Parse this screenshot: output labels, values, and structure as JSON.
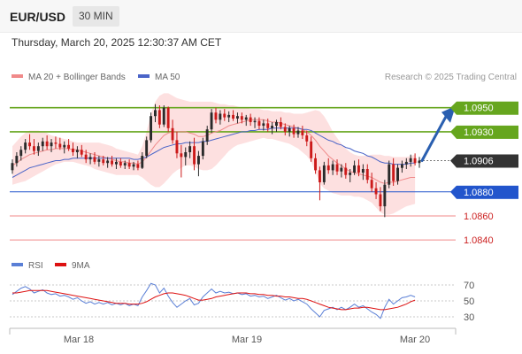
{
  "header": {
    "symbol": "EUR/USD",
    "timeframe": "30 MIN",
    "timestamp": "Thursday, March 20, 2025 12:30:37 AM CET"
  },
  "legend": {
    "ma20_label": "MA 20 + Bollinger Bands",
    "ma50_label": "MA 50",
    "credit": "Research © 2025 Trading Central"
  },
  "colors": {
    "bullish": "#2a2a2a",
    "bearish": "#cc1a1a",
    "ma20": "#f08a8a",
    "ma50": "#4a64c8",
    "bollinger_fill": "#fde0e0",
    "resistance": "#66a61e",
    "support": "#2255cc",
    "support_minor": "#f08a8a",
    "current_price": "#333333",
    "forecast_arrow": "#2a5fb0",
    "rsi": "#5a7fd6",
    "rsi_ma": "#dd1111"
  },
  "chart_data": [
    {
      "type": "candlestick",
      "title": "EUR/USD 30 MIN",
      "x_labels": [
        "Mar 18",
        "Mar 19",
        "Mar 20"
      ],
      "ylim": [
        1.0832,
        1.0966
      ],
      "candles": [
        [
          1.0898,
          1.0907,
          1.0895,
          1.0904
        ],
        [
          1.0904,
          1.0913,
          1.0901,
          1.091
        ],
        [
          1.091,
          1.0918,
          1.0906,
          1.0915
        ],
        [
          1.0915,
          1.0924,
          1.0912,
          1.0921
        ],
        [
          1.0921,
          1.0928,
          1.0915,
          1.0918
        ],
        [
          1.0918,
          1.0924,
          1.0911,
          1.0914
        ],
        [
          1.0914,
          1.0921,
          1.091,
          1.0918
        ],
        [
          1.0918,
          1.0925,
          1.0914,
          1.0922
        ],
        [
          1.0922,
          1.0927,
          1.0915,
          1.0918
        ],
        [
          1.0918,
          1.0924,
          1.0913,
          1.0921
        ],
        [
          1.0921,
          1.0926,
          1.0916,
          1.092
        ],
        [
          1.092,
          1.0925,
          1.0915,
          1.0917
        ],
        [
          1.0917,
          1.0922,
          1.0912,
          1.0919
        ],
        [
          1.0919,
          1.0924,
          1.0914,
          1.0916
        ],
        [
          1.0916,
          1.0921,
          1.091,
          1.0913
        ],
        [
          1.0913,
          1.0918,
          1.0908,
          1.0915
        ],
        [
          1.0915,
          1.0919,
          1.0909,
          1.0911
        ],
        [
          1.0911,
          1.0915,
          1.0904,
          1.0907
        ],
        [
          1.0907,
          1.0912,
          1.0903,
          1.0909
        ],
        [
          1.0909,
          1.0913,
          1.0903,
          1.0905
        ],
        [
          1.0905,
          1.091,
          1.0901,
          1.0907
        ],
        [
          1.0907,
          1.091,
          1.0902,
          1.0904
        ],
        [
          1.0904,
          1.0909,
          1.09,
          1.0906
        ],
        [
          1.0906,
          1.091,
          1.0901,
          1.0903
        ],
        [
          1.0903,
          1.0908,
          1.0899,
          1.0905
        ],
        [
          1.0905,
          1.0908,
          1.09,
          1.0902
        ],
        [
          1.0902,
          1.0906,
          1.0899,
          1.0904
        ],
        [
          1.0904,
          1.0907,
          1.0899,
          1.0901
        ],
        [
          1.0901,
          1.0905,
          1.0898,
          1.0903
        ],
        [
          1.0903,
          1.0906,
          1.0898,
          1.09
        ],
        [
          1.09,
          1.0913,
          1.0899,
          1.091
        ],
        [
          1.091,
          1.0926,
          1.0908,
          1.0923
        ],
        [
          1.0923,
          1.0946,
          1.0921,
          1.0943
        ],
        [
          1.0943,
          1.0953,
          1.0938,
          1.0948
        ],
        [
          1.0948,
          1.0952,
          1.0933,
          1.0936
        ],
        [
          1.0936,
          1.0952,
          1.0934,
          1.095
        ],
        [
          1.095,
          1.0951,
          1.093,
          1.0933
        ],
        [
          1.0933,
          1.094,
          1.092,
          1.0923
        ],
        [
          1.0923,
          1.093,
          1.0908,
          1.0912
        ],
        [
          1.0912,
          1.0919,
          1.0892,
          1.0909
        ],
        [
          1.0909,
          1.0917,
          1.0902,
          1.0913
        ],
        [
          1.0913,
          1.0922,
          1.0908,
          1.0918
        ],
        [
          1.0918,
          1.0925,
          1.0898,
          1.0903
        ],
        [
          1.0903,
          1.0914,
          1.0893,
          1.091
        ],
        [
          1.091,
          1.0925,
          1.0907,
          1.0922
        ],
        [
          1.0922,
          1.0935,
          1.0919,
          1.0932
        ],
        [
          1.0932,
          1.0949,
          1.0929,
          1.0946
        ],
        [
          1.0946,
          1.095,
          1.0937,
          1.094
        ],
        [
          1.094,
          1.0948,
          1.0936,
          1.0945
        ],
        [
          1.0945,
          1.0949,
          1.0939,
          1.0942
        ],
        [
          1.0942,
          1.0947,
          1.0938,
          1.0944
        ],
        [
          1.0944,
          1.0948,
          1.0939,
          1.0941
        ],
        [
          1.0941,
          1.0946,
          1.0937,
          1.0943
        ],
        [
          1.0943,
          1.0946,
          1.0937,
          1.094
        ],
        [
          1.094,
          1.0944,
          1.0935,
          1.0942
        ],
        [
          1.0942,
          1.0945,
          1.0935,
          1.0938
        ],
        [
          1.0938,
          1.0942,
          1.0933,
          1.0939
        ],
        [
          1.0939,
          1.0942,
          1.0932,
          1.0935
        ],
        [
          1.0935,
          1.094,
          1.0931,
          1.0937
        ],
        [
          1.0937,
          1.0941,
          1.093,
          1.0933
        ],
        [
          1.0933,
          1.0938,
          1.0928,
          1.0935
        ],
        [
          1.0935,
          1.094,
          1.093,
          1.0938
        ],
        [
          1.0938,
          1.0942,
          1.0932,
          1.0934
        ],
        [
          1.0934,
          1.0937,
          1.0927,
          1.093
        ],
        [
          1.093,
          1.0935,
          1.0926,
          1.0933
        ],
        [
          1.0933,
          1.0936,
          1.0925,
          1.0928
        ],
        [
          1.0928,
          1.0934,
          1.0925,
          1.0931
        ],
        [
          1.0931,
          1.0935,
          1.0924,
          1.0927
        ],
        [
          1.0927,
          1.0931,
          1.0918,
          1.0922
        ],
        [
          1.0922,
          1.0926,
          1.0905,
          1.0908
        ],
        [
          1.0908,
          1.0912,
          1.0895,
          1.0898
        ],
        [
          1.0898,
          1.0901,
          1.0873,
          1.0888
        ],
        [
          1.0888,
          1.0905,
          1.0886,
          1.0902
        ],
        [
          1.0902,
          1.0908,
          1.0895,
          1.0898
        ],
        [
          1.0898,
          1.0906,
          1.0894,
          1.0903
        ],
        [
          1.0903,
          1.0907,
          1.0894,
          1.0897
        ],
        [
          1.0897,
          1.0903,
          1.0892,
          1.09
        ],
        [
          1.09,
          1.0904,
          1.0891,
          1.0894
        ],
        [
          1.0894,
          1.0899,
          1.0888,
          1.0896
        ],
        [
          1.0896,
          1.0906,
          1.0894,
          1.0902
        ],
        [
          1.0902,
          1.0907,
          1.0893,
          1.0896
        ],
        [
          1.0896,
          1.0903,
          1.089,
          1.0899
        ],
        [
          1.0899,
          1.0903,
          1.0887,
          1.089
        ],
        [
          1.089,
          1.0896,
          1.088,
          1.0883
        ],
        [
          1.0883,
          1.0888,
          1.0874,
          1.0878
        ],
        [
          1.0878,
          1.0884,
          1.0864,
          1.0868
        ],
        [
          1.0868,
          1.089,
          1.0859,
          1.0886
        ],
        [
          1.0886,
          1.0906,
          1.0883,
          1.0903
        ],
        [
          1.0903,
          1.0908,
          1.0885,
          1.0889
        ],
        [
          1.0889,
          1.0903,
          1.0886,
          1.09
        ],
        [
          1.09,
          1.0906,
          1.0896,
          1.0903
        ],
        [
          1.0903,
          1.0908,
          1.0899,
          1.0905
        ],
        [
          1.0905,
          1.0911,
          1.0901,
          1.0908
        ],
        [
          1.0908,
          1.0912,
          1.0902,
          1.0904
        ],
        [
          1.0904,
          1.0909,
          1.09,
          1.0906
        ]
      ],
      "candle_fields": [
        "open",
        "high",
        "low",
        "close"
      ],
      "ma20": [
        1.0902,
        1.0904,
        1.0907,
        1.0909,
        1.0911,
        1.0912,
        1.0913,
        1.0914,
        1.0915,
        1.0915,
        1.0916,
        1.0916,
        1.0916,
        1.0916,
        1.0915,
        1.0915,
        1.0914,
        1.0913,
        1.0912,
        1.0911,
        1.091,
        1.0909,
        1.0908,
        1.0907,
        1.0906,
        1.0905,
        1.0905,
        1.0904,
        1.0904,
        1.0903,
        1.0905,
        1.0909,
        1.0914,
        1.0919,
        1.0923,
        1.0927,
        1.0929,
        1.093,
        1.093,
        1.093,
        1.093,
        1.0929,
        1.0928,
        1.0926,
        1.0926,
        1.0927,
        1.0929,
        1.093,
        1.0931,
        1.0933,
        1.0935,
        1.0936,
        1.0937,
        1.0938,
        1.0939,
        1.094,
        1.094,
        1.094,
        1.094,
        1.0939,
        1.0938,
        1.0938,
        1.0937,
        1.0936,
        1.0935,
        1.0934,
        1.0933,
        1.0932,
        1.093,
        1.0927,
        1.0923,
        1.0918,
        1.0914,
        1.091,
        1.0907,
        1.0904,
        1.0902,
        1.0899,
        1.0897,
        1.0896,
        1.0895,
        1.0894,
        1.0893,
        1.0892,
        1.089,
        1.0888,
        1.0887,
        1.0888,
        1.0888,
        1.0889,
        1.089,
        1.0891,
        1.0892,
        1.0892
      ],
      "ma50": [
        1.0892,
        1.0894,
        1.0896,
        1.0898,
        1.09,
        1.0901,
        1.0902,
        1.0903,
        1.0904,
        1.0905,
        1.0906,
        1.0906,
        1.0907,
        1.0907,
        1.0908,
        1.0908,
        1.0908,
        1.0908,
        1.0908,
        1.0908,
        1.0908,
        1.0908,
        1.0908,
        1.0908,
        1.0908,
        1.0908,
        1.0908,
        1.0908,
        1.0907,
        1.0907,
        1.0908,
        1.0909,
        1.0911,
        1.0913,
        1.0915,
        1.0917,
        1.0918,
        1.0919,
        1.092,
        1.092,
        1.0921,
        1.0921,
        1.0921,
        1.0921,
        1.0922,
        1.0922,
        1.0923,
        1.0924,
        1.0925,
        1.0926,
        1.0927,
        1.0928,
        1.0929,
        1.093,
        1.093,
        1.0931,
        1.0931,
        1.0932,
        1.0932,
        1.0932,
        1.0933,
        1.0933,
        1.0933,
        1.0933,
        1.0933,
        1.0933,
        1.0933,
        1.0932,
        1.0932,
        1.0931,
        1.0929,
        1.0927,
        1.0925,
        1.0923,
        1.0922,
        1.092,
        1.0919,
        1.0917,
        1.0916,
        1.0914,
        1.0913,
        1.0912,
        1.091,
        1.0909,
        1.0907,
        1.0905,
        1.0904,
        1.0904,
        1.0903,
        1.0903,
        1.0903,
        1.0903,
        1.0904,
        1.0904
      ],
      "bb_upper": [
        1.0918,
        1.0922,
        1.0926,
        1.0929,
        1.0931,
        1.0931,
        1.0931,
        1.093,
        1.0929,
        1.0927,
        1.0926,
        1.0925,
        1.0924,
        1.0923,
        1.0922,
        1.0921,
        1.0921,
        1.0921,
        1.0921,
        1.0921,
        1.0921,
        1.092,
        1.0919,
        1.0918,
        1.0916,
        1.0915,
        1.0914,
        1.0913,
        1.0912,
        1.0911,
        1.0918,
        1.093,
        1.0945,
        1.0955,
        1.096,
        1.0962,
        1.0962,
        1.096,
        1.0958,
        1.0957,
        1.0956,
        1.0955,
        1.0955,
        1.0955,
        1.0955,
        1.0955,
        1.0955,
        1.0954,
        1.0953,
        1.0953,
        1.0952,
        1.0952,
        1.0951,
        1.095,
        1.095,
        1.0949,
        1.0949,
        1.0949,
        1.0948,
        1.0948,
        1.0947,
        1.0947,
        1.0947,
        1.0946,
        1.0946,
        1.0945,
        1.0945,
        1.0945,
        1.0946,
        1.0947,
        1.0948,
        1.0947,
        1.0943,
        1.0937,
        1.093,
        1.0925,
        1.092,
        1.0916,
        1.0913,
        1.0911,
        1.091,
        1.091,
        1.091,
        1.0911,
        1.0911,
        1.0911,
        1.091,
        1.091,
        1.0909,
        1.0909,
        1.0909,
        1.0909,
        1.091,
        1.0911
      ],
      "bb_lower": [
        1.0886,
        1.0887,
        1.0888,
        1.0889,
        1.0891,
        1.0893,
        1.0895,
        1.0897,
        1.0899,
        1.0901,
        1.0903,
        1.0904,
        1.0905,
        1.0905,
        1.0905,
        1.0904,
        1.0903,
        1.0902,
        1.0901,
        1.0899,
        1.0898,
        1.0897,
        1.0896,
        1.0895,
        1.0894,
        1.0894,
        1.0894,
        1.0894,
        1.0894,
        1.0894,
        1.0892,
        1.0889,
        1.0886,
        1.0884,
        1.0884,
        1.0887,
        1.0891,
        1.0895,
        1.0898,
        1.09,
        1.0902,
        1.0902,
        1.0901,
        1.0899,
        1.0898,
        1.0898,
        1.0899,
        1.0902,
        1.0906,
        1.091,
        1.0914,
        1.0917,
        1.0919,
        1.092,
        1.0921,
        1.0922,
        1.0923,
        1.0924,
        1.0925,
        1.0924,
        1.0924,
        1.0923,
        1.0922,
        1.0921,
        1.092,
        1.0918,
        1.0916,
        1.0913,
        1.091,
        1.0905,
        1.0897,
        1.0887,
        1.0883,
        1.0881,
        1.0879,
        1.0878,
        1.0877,
        1.0877,
        1.0877,
        1.0876,
        1.0876,
        1.0875,
        1.0873,
        1.0871,
        1.0867,
        1.0863,
        1.0861,
        1.0861,
        1.0862,
        1.0864,
        1.0866,
        1.0868,
        1.0869,
        1.087
      ],
      "levels": [
        {
          "value": 1.095,
          "label": "1.0950",
          "kind": "resistance",
          "style": "box"
        },
        {
          "value": 1.093,
          "label": "1.0930",
          "kind": "resistance",
          "style": "box"
        },
        {
          "value": 1.0906,
          "label": "1.0906",
          "kind": "current",
          "style": "box"
        },
        {
          "value": 1.088,
          "label": "1.0880",
          "kind": "support",
          "style": "box"
        },
        {
          "value": 1.086,
          "label": "1.0860",
          "kind": "support_minor",
          "style": "text"
        },
        {
          "value": 1.084,
          "label": "1.0840",
          "kind": "support_minor",
          "style": "text"
        }
      ],
      "forecast": {
        "direction": "up",
        "from": 1.0906,
        "to": 1.095
      }
    },
    {
      "type": "line",
      "title": "RSI",
      "series_names": [
        "RSI",
        "9MA"
      ],
      "ylim": [
        20,
        80
      ],
      "y_ticks": [
        70,
        50,
        30
      ],
      "rsi": [
        58,
        62,
        66,
        68,
        65,
        60,
        62,
        64,
        60,
        58,
        59,
        56,
        57,
        55,
        52,
        54,
        50,
        47,
        49,
        46,
        48,
        46,
        48,
        45,
        47,
        45,
        47,
        44,
        46,
        44,
        55,
        63,
        72,
        70,
        60,
        66,
        56,
        48,
        42,
        46,
        50,
        53,
        45,
        47,
        55,
        60,
        65,
        60,
        62,
        60,
        61,
        59,
        60,
        58,
        59,
        56,
        57,
        55,
        56,
        53,
        55,
        57,
        54,
        51,
        53,
        50,
        52,
        49,
        46,
        40,
        35,
        30,
        38,
        40,
        42,
        39,
        42,
        39,
        42,
        46,
        42,
        44,
        40,
        36,
        33,
        28,
        42,
        52,
        46,
        50,
        54,
        55,
        57,
        55
      ],
      "ma9": [
        60,
        60,
        61,
        62,
        63,
        63,
        63,
        63,
        63,
        62,
        61,
        60,
        59,
        58,
        57,
        56,
        55,
        54,
        53,
        52,
        51,
        50,
        49,
        48,
        47,
        47,
        47,
        46,
        46,
        46,
        47,
        49,
        52,
        55,
        57,
        59,
        60,
        60,
        59,
        58,
        57,
        55,
        53,
        51,
        51,
        52,
        53,
        55,
        56,
        57,
        58,
        59,
        60,
        60,
        60,
        59,
        59,
        58,
        58,
        57,
        57,
        56,
        56,
        55,
        55,
        54,
        53,
        53,
        52,
        50,
        48,
        46,
        44,
        42,
        41,
        40,
        39,
        39,
        40,
        41,
        41,
        42,
        42,
        41,
        40,
        39,
        39,
        40,
        41,
        42,
        44,
        46,
        49,
        51
      ]
    }
  ]
}
